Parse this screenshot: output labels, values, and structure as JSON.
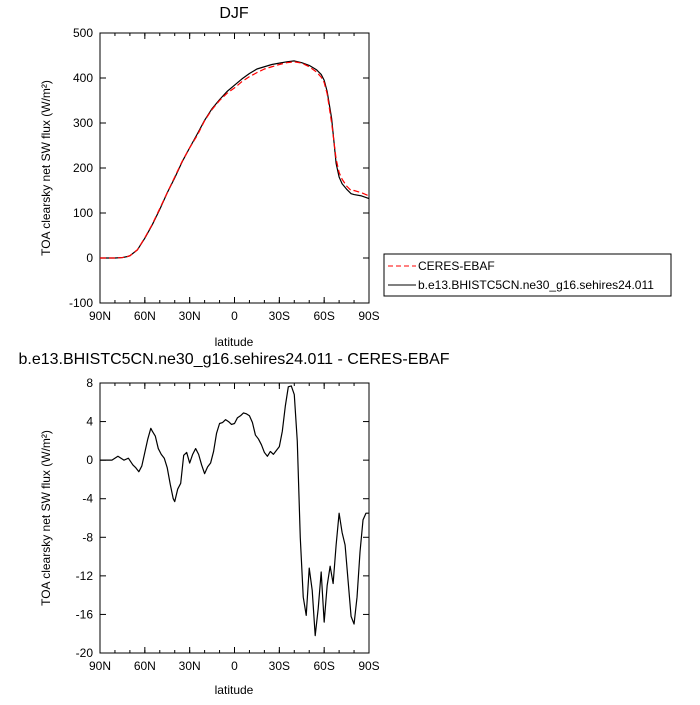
{
  "chart_data": [
    {
      "type": "line",
      "title": "DJF",
      "xlabel": "latitude",
      "ylabel": "TOA clearsky net SW flux (W/m²)",
      "xlim": [
        90,
        -90
      ],
      "ylim": [
        -100,
        500
      ],
      "xticks": [
        "90N",
        "60N",
        "30N",
        "0",
        "30S",
        "60S",
        "90S"
      ],
      "yticks": [
        "-100",
        "0",
        "100",
        "200",
        "300",
        "400",
        "500"
      ],
      "x_values": [
        90,
        80,
        75,
        72,
        70,
        65,
        60,
        55,
        50,
        45,
        40,
        35,
        30,
        25,
        20,
        15,
        10,
        5,
        0,
        -5,
        -10,
        -15,
        -20,
        -25,
        -30,
        -35,
        -40,
        -45,
        -50,
        -55,
        -58,
        -60,
        -62,
        -65,
        -68,
        -70,
        -72,
        -75,
        -78,
        -80,
        -85,
        -90
      ],
      "series": [
        {
          "name": "CERES-EBAF",
          "color": "#ff0000",
          "style": "dashed",
          "values": [
            0,
            0,
            1,
            3,
            5,
            18,
            45,
            75,
            110,
            145,
            180,
            215,
            245,
            272,
            305,
            330,
            350,
            366,
            378,
            392,
            403,
            412,
            420,
            425,
            430,
            434,
            436,
            433,
            425,
            413,
            402,
            390,
            365,
            300,
            220,
            190,
            175,
            160,
            150,
            150,
            145,
            138
          ]
        },
        {
          "name": "b.e13.BHISTC5CN.ne30_g16.sehires24.011",
          "color": "#000000",
          "style": "solid",
          "values": [
            0,
            0,
            1,
            3,
            5,
            18,
            44,
            74,
            108,
            145,
            178,
            214,
            245,
            275,
            306,
            332,
            352,
            370,
            384,
            398,
            410,
            420,
            425,
            430,
            433,
            436,
            438,
            434,
            428,
            418,
            408,
            395,
            370,
            310,
            210,
            180,
            165,
            153,
            143,
            141,
            138,
            132
          ]
        }
      ],
      "legend": "right"
    },
    {
      "type": "line",
      "title": "b.e13.BHISTC5CN.ne30_g16.sehires24.011 - CERES-EBAF",
      "xlabel": "latitude",
      "ylabel": "TOA clearsky net SW flux (W/m²)",
      "xlim": [
        90,
        -90
      ],
      "ylim": [
        -20,
        8
      ],
      "xticks": [
        "90N",
        "60N",
        "30N",
        "0",
        "30S",
        "60S",
        "90S"
      ],
      "yticks": [
        "-20",
        "-16",
        "-12",
        "-8",
        "-4",
        "0",
        "4",
        "8"
      ],
      "x_values": [
        90,
        82,
        78,
        74,
        71,
        68,
        66,
        64,
        62,
        60,
        58,
        56,
        55,
        53,
        51,
        49,
        47,
        45,
        43,
        41,
        40,
        38,
        36,
        34,
        32,
        30,
        28,
        26,
        24,
        22,
        20,
        18,
        16,
        14,
        12,
        10,
        8,
        6,
        4,
        2,
        0,
        -2,
        -4,
        -6,
        -8,
        -10,
        -12,
        -14,
        -16,
        -18,
        -20,
        -22,
        -24,
        -26,
        -28,
        -30,
        -32,
        -34,
        -36,
        -38,
        -40,
        -42,
        -44,
        -46,
        -48,
        -50,
        -52,
        -54,
        -56,
        -58,
        -60,
        -62,
        -64,
        -66,
        -68,
        -70,
        -72,
        -74,
        -76,
        -78,
        -80,
        -82,
        -84,
        -86,
        -88,
        -90
      ],
      "series": [
        {
          "name": "b.e13.BHISTC5CN.ne30_g16.sehires24.011 - CERES-EBAF",
          "color": "#000000",
          "style": "solid",
          "values": [
            0,
            0,
            0.4,
            0.0,
            0.2,
            -0.5,
            -0.8,
            -1.2,
            -0.6,
            0.8,
            2.2,
            3.3,
            3.0,
            2.5,
            1.2,
            0.6,
            0.2,
            -0.8,
            -2.5,
            -4.0,
            -4.3,
            -3.0,
            -2.4,
            0.5,
            0.8,
            -0.3,
            0.6,
            1.2,
            0.6,
            -0.5,
            -1.4,
            -0.7,
            -0.3,
            0.9,
            2.8,
            3.8,
            3.9,
            4.2,
            4.0,
            3.7,
            3.8,
            4.4,
            4.6,
            4.9,
            4.8,
            4.6,
            3.9,
            2.6,
            2.2,
            1.6,
            0.8,
            0.4,
            0.9,
            0.6,
            1.0,
            1.4,
            3.0,
            5.6,
            7.6,
            7.7,
            6.8,
            2.0,
            -8.0,
            -14.2,
            -16.1,
            -11.2,
            -13.5,
            -18.2,
            -15.4,
            -11.6,
            -16.8,
            -13.0,
            -11.0,
            -12.8,
            -8.8,
            -5.5,
            -7.5,
            -8.8,
            -12.5,
            -16.2,
            -17.0,
            -14.2,
            -9.5,
            -6.2,
            -5.5,
            -5.5
          ]
        }
      ]
    }
  ]
}
